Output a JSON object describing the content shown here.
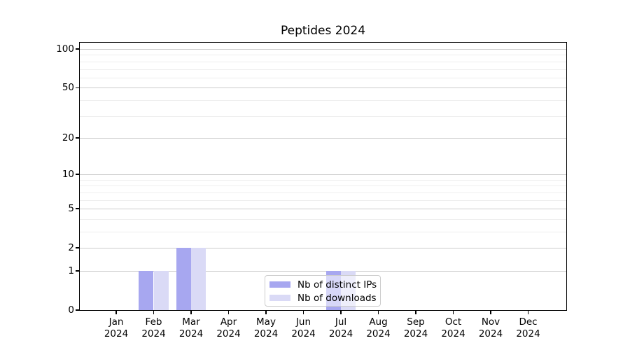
{
  "chart_data": {
    "type": "bar",
    "title": "Peptides 2024",
    "categories": [
      "Jan",
      "Feb",
      "Mar",
      "Apr",
      "May",
      "Jun",
      "Jul",
      "Aug",
      "Sep",
      "Oct",
      "Nov",
      "Dec"
    ],
    "category_year": "2024",
    "series": [
      {
        "name": "Nb of distinct IPs",
        "color": "#a7a7f0",
        "values": [
          0,
          1,
          2,
          0,
          0,
          0,
          1,
          0,
          0,
          0,
          0,
          0
        ]
      },
      {
        "name": "Nb of downloads",
        "color": "#dadaf6",
        "values": [
          0,
          1,
          2,
          0,
          0,
          0,
          1,
          0,
          0,
          0,
          0,
          0
        ]
      }
    ],
    "yscale": "log1p",
    "ylim": [
      0,
      112
    ],
    "yticks": [
      0,
      1,
      2,
      5,
      10,
      20,
      50,
      100
    ],
    "yticks_minor": [
      3,
      4,
      6,
      7,
      8,
      9,
      30,
      40,
      60,
      70,
      80,
      90
    ],
    "grid": true,
    "legend_position": "lower-center"
  },
  "colors": {
    "grid_major": "#cccccc",
    "grid_minor": "#eeeeee",
    "axis": "#000000",
    "legend_border": "#cccccc"
  }
}
